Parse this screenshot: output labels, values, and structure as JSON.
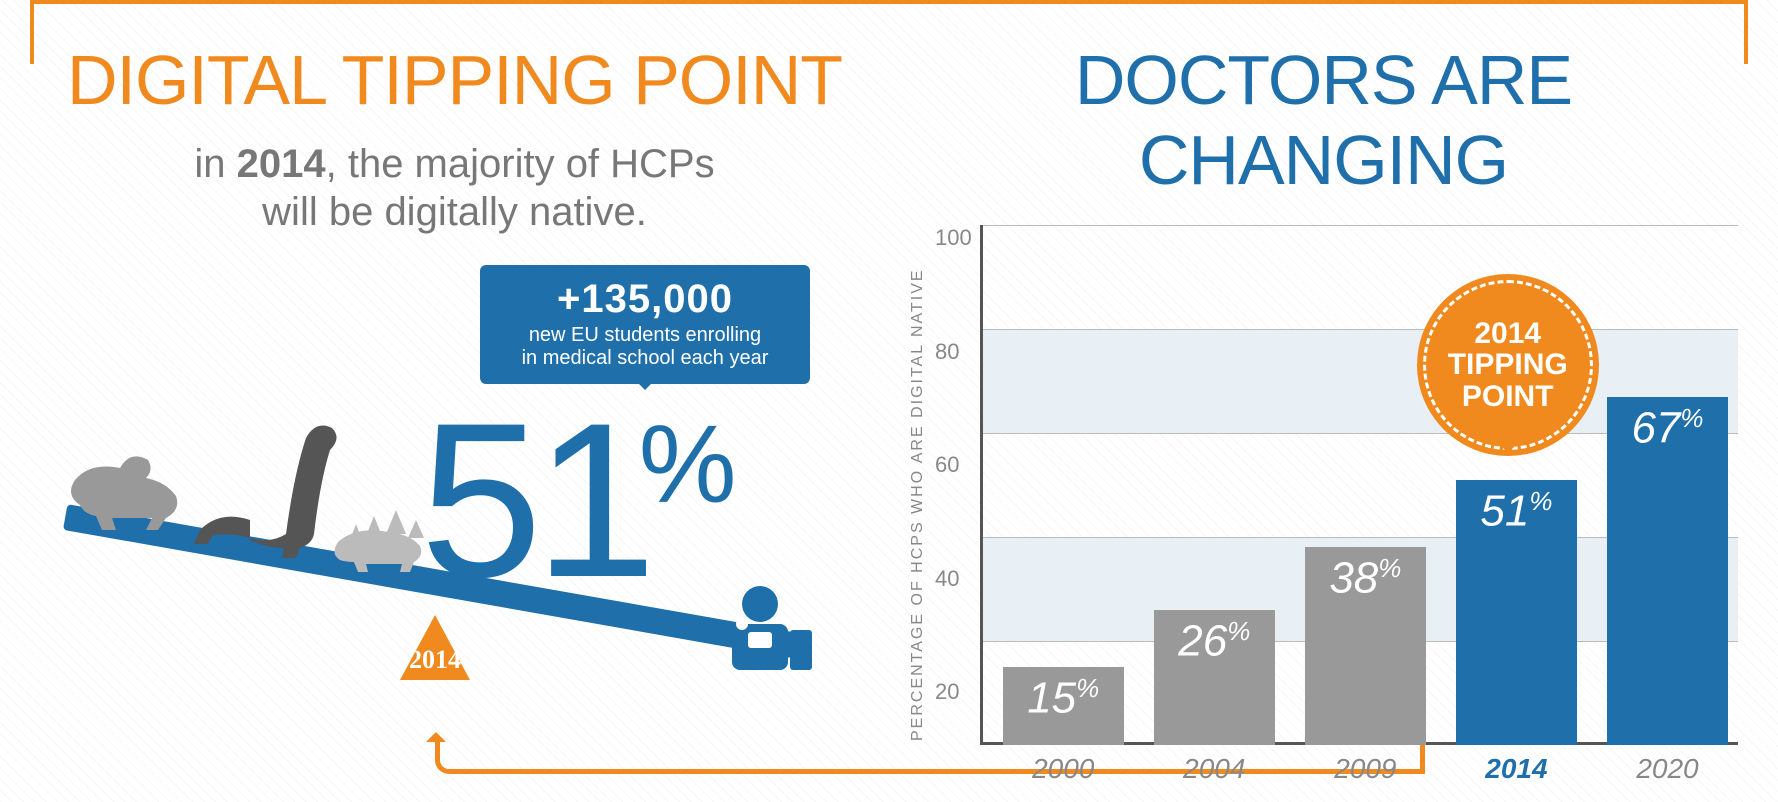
{
  "colors": {
    "orange": "#f08a1e",
    "blue": "#1f6fab",
    "grey_bar": "#999999",
    "grey_text": "#888888",
    "axis": "#555555",
    "band": "#e8f0f6",
    "white": "#ffffff"
  },
  "left": {
    "heading": "DIGITAL TIPPING POINT",
    "subtitle_prefix": "in ",
    "subtitle_bold": "2014",
    "subtitle_rest": ", the majority of HCPs",
    "subtitle_line2": "will be digitally native.",
    "callout_big": "+135,000",
    "callout_small_l1": "new EU students enrolling",
    "callout_small_l2": "in medical school each year",
    "big_value": "51",
    "big_unit": "%",
    "fulcrum_label": "2014"
  },
  "right": {
    "heading": "DOCTORS ARE CHANGING"
  },
  "chart": {
    "type": "bar",
    "y_axis_label": "PERCENTAGE OF HCPS WHO ARE DIGITAL NATIVE",
    "ylim": [
      0,
      100
    ],
    "yticks": [
      100,
      80,
      60,
      40,
      20
    ],
    "categories": [
      "2000",
      "2004",
      "2009",
      "2014",
      "2020"
    ],
    "values": [
      15,
      26,
      38,
      51,
      67
    ],
    "bar_colors": [
      "#999999",
      "#999999",
      "#999999",
      "#1f6fab",
      "#1f6fab"
    ],
    "highlight_index": 3,
    "value_suffix": "%",
    "badge_l1": "2014",
    "badge_l2": "TIPPING",
    "badge_l3": "POINT",
    "grid_color": "#bbbbbb",
    "band_rows": [
      1,
      3
    ],
    "label_fontsize": 28,
    "value_fontsize": 44,
    "title_fontsize": 70
  }
}
